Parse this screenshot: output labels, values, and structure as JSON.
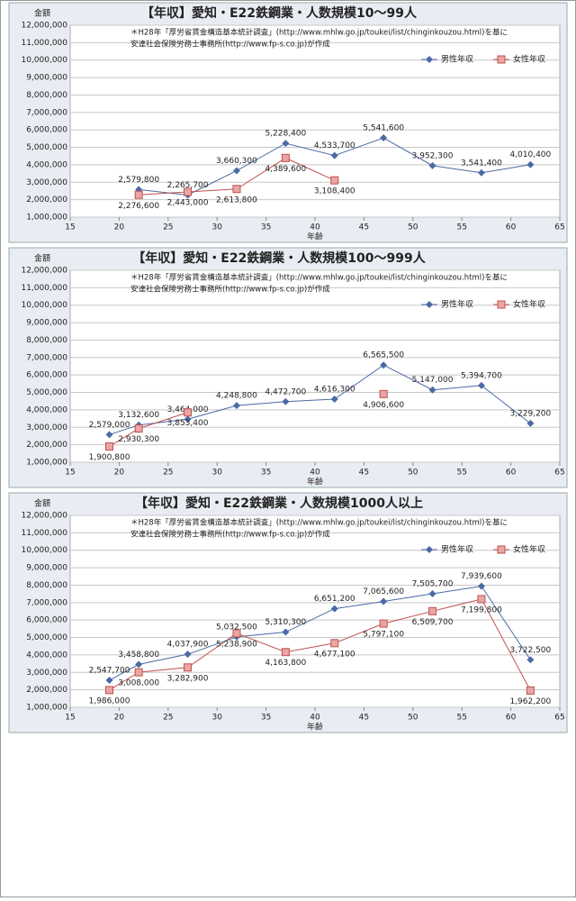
{
  "chart_data": [
    {
      "type": "line",
      "title": "【年収】愛知・E22鉄鋼業・人数規模10～99人",
      "annotations": [
        "＊H28年「厚労省賃金構造基本統計調査」(http://www.mhlw.go.jp/toukei/list/chinginkouzou.html)を基に",
        "安達社会保険労務士事務所(http://www.fp-s.co.jp)が作成"
      ],
      "y_label": "金額",
      "x_label": "年齢",
      "legend": "top-right",
      "grid": true,
      "x": [
        22,
        27,
        32,
        37,
        42,
        47,
        52,
        57,
        62
      ],
      "series": [
        {
          "name": "男性年収",
          "color": "#4a6aa5",
          "marker": "diamond",
          "values": [
            2579800,
            2265700,
            3660300,
            5228400,
            4533700,
            5541600,
            3952300,
            3541400,
            4010400
          ],
          "value_labels": [
            "2,579,800",
            "2,265,700",
            "3,660,300",
            "5,228,400",
            "4,533,700",
            "5,541,600",
            "3,952,300",
            "3,541,400",
            "4,010,400"
          ]
        },
        {
          "name": "女性年収",
          "color": "#c0504d",
          "marker": "square",
          "values": [
            2276600,
            2443000,
            2613800,
            4389600,
            3108400,
            null,
            null,
            null,
            null
          ],
          "value_labels": [
            "2,276,600",
            "2,443,000",
            "2,613,800",
            "4,389,600",
            "3,108,400",
            null,
            null,
            null,
            null
          ]
        }
      ],
      "xlim": [
        15,
        65
      ],
      "xticks": [
        15,
        20,
        25,
        30,
        35,
        40,
        45,
        50,
        55,
        60,
        65
      ],
      "ylim": [
        1000000,
        12000000
      ],
      "yticks": [
        {
          "value": 1000000,
          "label": "1,000,000"
        },
        {
          "value": 2000000,
          "label": "2,000,000"
        },
        {
          "value": 3000000,
          "label": "3,000,000"
        },
        {
          "value": 4000000,
          "label": "4,000,000"
        },
        {
          "value": 5000000,
          "label": "5,000,000"
        },
        {
          "value": 6000000,
          "label": "6,000,000"
        },
        {
          "value": 7000000,
          "label": "7,000,000"
        },
        {
          "value": 8000000,
          "label": "8,000,000"
        },
        {
          "value": 9000000,
          "label": "9,000,000"
        },
        {
          "value": 10000000,
          "label": "10,000,000"
        },
        {
          "value": 11000000,
          "label": "11,000,000"
        },
        {
          "value": 12000000,
          "label": "12,000,000"
        }
      ]
    },
    {
      "type": "line",
      "title": "【年収】愛知・E22鉄鋼業・人数規模100～999人",
      "annotations": [
        "＊H28年「厚労省賃金構造基本統計調査」(http://www.mhlw.go.jp/toukei/list/chinginkouzou.html)を基に",
        "安達社会保険労務士事務所(http://www.fp-s.co.jp)が作成"
      ],
      "y_label": "金額",
      "x_label": "年齢",
      "legend": "top-right",
      "grid": true,
      "x": [
        19,
        22,
        27,
        32,
        37,
        42,
        47,
        52,
        57,
        62
      ],
      "series": [
        {
          "name": "男性年収",
          "color": "#4a6aa5",
          "marker": "diamond",
          "values": [
            2579000,
            3132600,
            3464000,
            4248800,
            4472700,
            4616300,
            6565500,
            5147000,
            5394700,
            3229200
          ],
          "value_labels": [
            "2,579,000",
            "3,132,600",
            "3,464,000",
            "4,248,800",
            "4,472,700",
            "4,616,300",
            "6,565,500",
            "5,147,000",
            "5,394,700",
            "3,229,200"
          ]
        },
        {
          "name": "女性年収",
          "color": "#c0504d",
          "marker": "square",
          "values": [
            1900800,
            2930300,
            3853400,
            null,
            null,
            null,
            4906600,
            null,
            null,
            null
          ],
          "value_labels": [
            "1,900,800",
            "2,930,300",
            "3,853,400",
            null,
            null,
            null,
            "4,906,600",
            null,
            null,
            null
          ]
        }
      ],
      "xlim": [
        15,
        65
      ],
      "xticks": [
        15,
        20,
        25,
        30,
        35,
        40,
        45,
        50,
        55,
        60,
        65
      ],
      "ylim": [
        1000000,
        12000000
      ],
      "yticks": [
        {
          "value": 1000000,
          "label": "1,000,000"
        },
        {
          "value": 2000000,
          "label": "2,000,000"
        },
        {
          "value": 3000000,
          "label": "3,000,000"
        },
        {
          "value": 4000000,
          "label": "4,000,000"
        },
        {
          "value": 5000000,
          "label": "5,000,000"
        },
        {
          "value": 6000000,
          "label": "6,000,000"
        },
        {
          "value": 7000000,
          "label": "7,000,000"
        },
        {
          "value": 8000000,
          "label": "8,000,000"
        },
        {
          "value": 9000000,
          "label": "9,000,000"
        },
        {
          "value": 10000000,
          "label": "10,000,000"
        },
        {
          "value": 11000000,
          "label": "11,000,000"
        },
        {
          "value": 12000000,
          "label": "12,000,000"
        }
      ]
    },
    {
      "type": "line",
      "title": "【年収】愛知・E22鉄鋼業・人数規模1000人以上",
      "annotations": [
        "＊H28年「厚労省賃金構造基本統計調査」(http://www.mhlw.go.jp/toukei/list/chinginkouzou.html)を基に",
        "安達社会保険労務士事務所(http://www.fp-s.co.jp)が作成"
      ],
      "y_label": "金額",
      "x_label": "年齢",
      "legend": "top-right",
      "grid": true,
      "x": [
        19,
        22,
        27,
        32,
        37,
        42,
        47,
        52,
        57,
        62
      ],
      "series": [
        {
          "name": "男性年収",
          "color": "#4a6aa5",
          "marker": "diamond",
          "values": [
            2547700,
            3458800,
            4037900,
            5032500,
            5310300,
            6651200,
            7065600,
            7505700,
            7939600,
            3722500
          ],
          "value_labels": [
            "2,547,700",
            "3,458,800",
            "4,037,900",
            "5,032,500",
            "5,310,300",
            "6,651,200",
            "7,065,600",
            "7,505,700",
            "7,939,600",
            "3,722,500"
          ]
        },
        {
          "name": "女性年収",
          "color": "#c0504d",
          "marker": "square",
          "values": [
            1986000,
            3008000,
            3282900,
            5238900,
            4163800,
            4677100,
            5797100,
            6509700,
            7199800,
            1962200
          ],
          "value_labels": [
            "1,986,000",
            "3,008,000",
            "3,282,900",
            "5,238,900",
            "4,163,800",
            "4,677,100",
            "5,797,100",
            "6,509,700",
            "7,199,800",
            "1,962,200"
          ]
        }
      ],
      "xlim": [
        15,
        65
      ],
      "xticks": [
        15,
        20,
        25,
        30,
        35,
        40,
        45,
        50,
        55,
        60,
        65
      ],
      "ylim": [
        1000000,
        12000000
      ],
      "yticks": [
        {
          "value": 1000000,
          "label": "1,000,000"
        },
        {
          "value": 2000000,
          "label": "2,000,000"
        },
        {
          "value": 3000000,
          "label": "3,000,000"
        },
        {
          "value": 4000000,
          "label": "4,000,000"
        },
        {
          "value": 5000000,
          "label": "5,000,000"
        },
        {
          "value": 6000000,
          "label": "6,000,000"
        },
        {
          "value": 7000000,
          "label": "7,000,000"
        },
        {
          "value": 8000000,
          "label": "8,000,000"
        },
        {
          "value": 9000000,
          "label": "9,000,000"
        },
        {
          "value": 10000000,
          "label": "10,000,000"
        },
        {
          "value": 11000000,
          "label": "11,000,000"
        },
        {
          "value": 12000000,
          "label": "12,000,000"
        }
      ]
    }
  ]
}
